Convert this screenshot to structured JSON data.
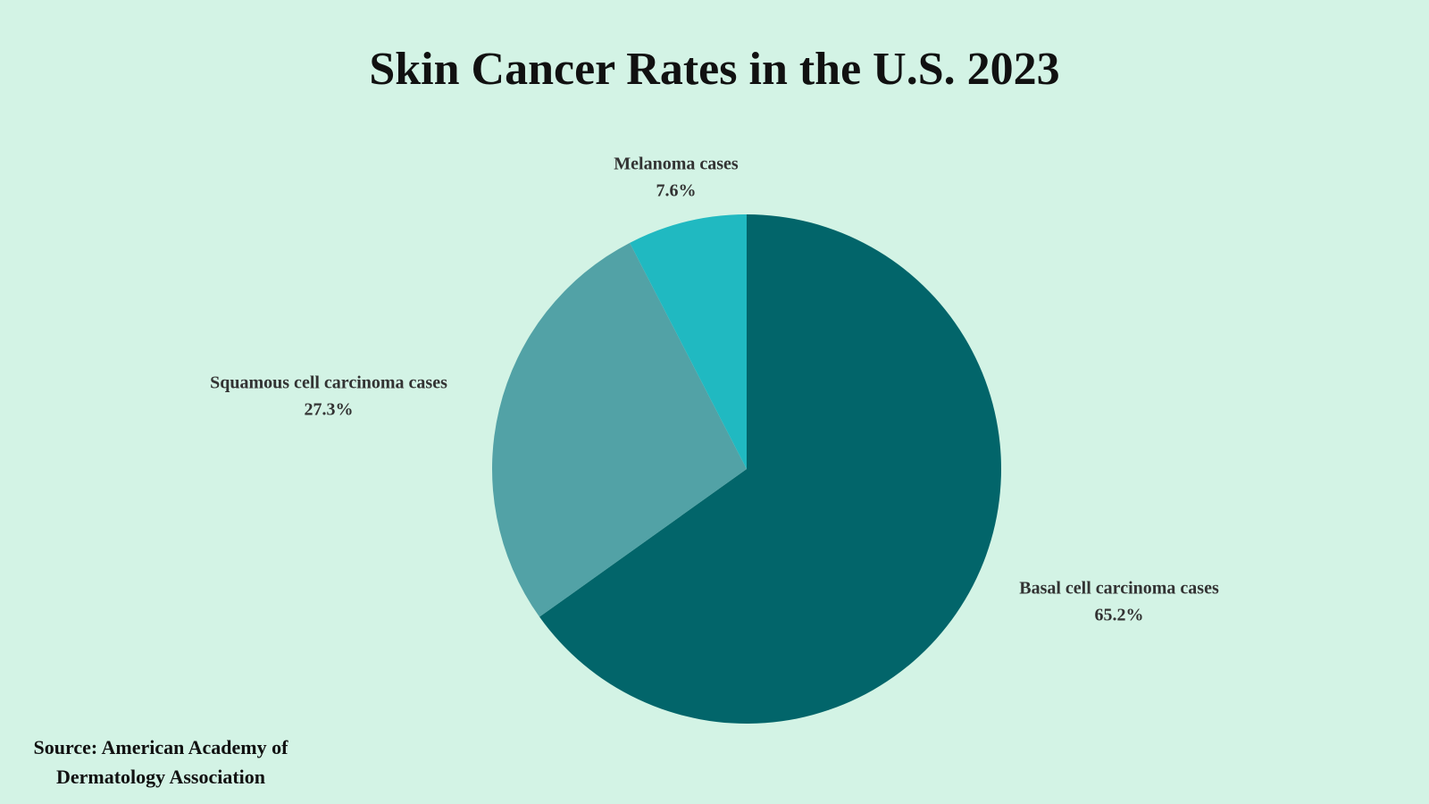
{
  "chart_data": {
    "type": "pie",
    "title": "Skin Cancer Rates in the U.S. 2023",
    "categories": [
      "Basal cell carcinoma cases",
      "Squamous cell carcinoma cases",
      "Melanoma cases"
    ],
    "values": [
      65.2,
      27.3,
      7.6
    ],
    "value_labels": [
      "65.2%",
      "27.3%",
      "7.6%"
    ],
    "colors": [
      "#02656a",
      "#52a2a6",
      "#20b9c1"
    ],
    "source": "Source: American Academy of Dermatology Association"
  }
}
